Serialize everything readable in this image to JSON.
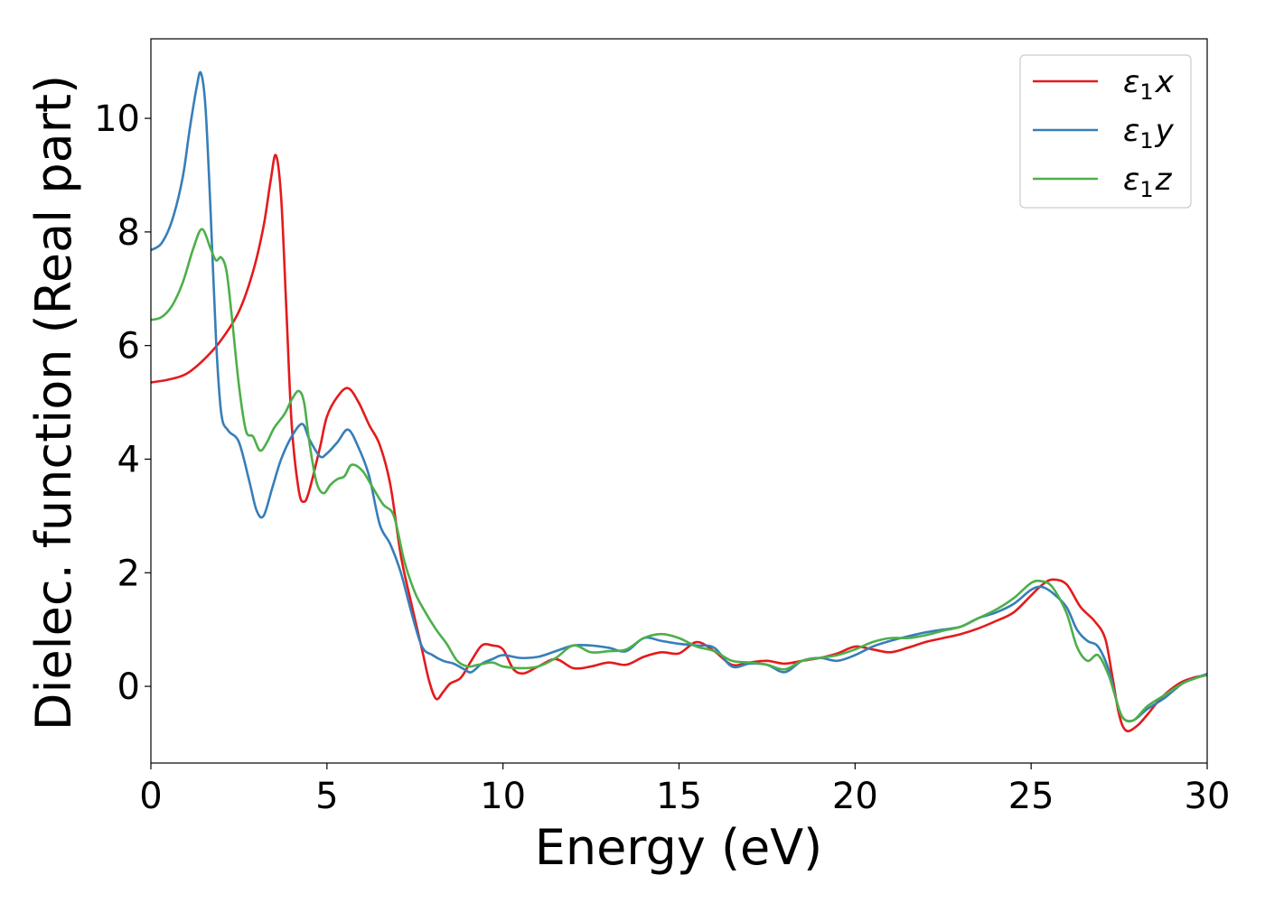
{
  "chart_data": {
    "type": "line",
    "title": "",
    "xlabel": "Energy (eV)",
    "ylabel": "Dielec. function (Real part)",
    "xlim": [
      0,
      30
    ],
    "ylim": [
      -1.35,
      11.4
    ],
    "xticks": [
      0,
      5,
      10,
      15,
      20,
      25,
      30
    ],
    "yticks": [
      0,
      2,
      4,
      6,
      8,
      10
    ],
    "grid": false,
    "legend_position": "top-right",
    "series": [
      {
        "name_base": "ε",
        "name_sub": "1",
        "name_suffix": "x",
        "color": "#e41a1c",
        "x": [
          0,
          0.5,
          1.0,
          1.5,
          2.0,
          2.5,
          2.9,
          3.2,
          3.4,
          3.55,
          3.7,
          3.85,
          4.0,
          4.2,
          4.35,
          4.5,
          4.8,
          5.0,
          5.3,
          5.6,
          5.9,
          6.2,
          6.5,
          6.8,
          7.1,
          7.4,
          7.7,
          7.9,
          8.1,
          8.3,
          8.5,
          8.8,
          9.1,
          9.4,
          9.7,
          10.0,
          10.3,
          10.6,
          11.0,
          11.5,
          12.0,
          12.5,
          13.0,
          13.5,
          14.0,
          14.5,
          15.0,
          15.5,
          16.0,
          16.5,
          17.0,
          17.5,
          18.0,
          18.5,
          19.0,
          19.5,
          20.0,
          20.5,
          21.0,
          21.5,
          22.0,
          22.5,
          23.0,
          23.5,
          24.0,
          24.5,
          25.0,
          25.3,
          25.6,
          26.0,
          26.4,
          26.8,
          27.1,
          27.3,
          27.5,
          27.7,
          28.0,
          28.3,
          28.7,
          29.2,
          29.6,
          30.0
        ],
        "y": [
          5.35,
          5.4,
          5.5,
          5.75,
          6.1,
          6.6,
          7.3,
          8.1,
          8.9,
          9.35,
          8.6,
          6.6,
          4.6,
          3.45,
          3.25,
          3.45,
          4.2,
          4.75,
          5.1,
          5.25,
          5.0,
          4.6,
          4.25,
          3.55,
          2.3,
          1.45,
          0.65,
          0.1,
          -0.22,
          -0.1,
          0.05,
          0.15,
          0.45,
          0.72,
          0.72,
          0.65,
          0.3,
          0.23,
          0.35,
          0.48,
          0.32,
          0.35,
          0.42,
          0.38,
          0.52,
          0.6,
          0.58,
          0.78,
          0.62,
          0.38,
          0.42,
          0.45,
          0.4,
          0.45,
          0.5,
          0.58,
          0.7,
          0.65,
          0.6,
          0.68,
          0.78,
          0.85,
          0.92,
          1.02,
          1.15,
          1.3,
          1.6,
          1.78,
          1.88,
          1.8,
          1.4,
          1.15,
          0.85,
          0.2,
          -0.5,
          -0.78,
          -0.7,
          -0.5,
          -0.2,
          0.05,
          0.15,
          0.2
        ]
      },
      {
        "name_base": "ε",
        "name_sub": "1",
        "name_suffix": "y",
        "color": "#377eb8",
        "x": [
          0,
          0.3,
          0.6,
          0.9,
          1.1,
          1.3,
          1.42,
          1.55,
          1.7,
          1.85,
          2.0,
          2.2,
          2.5,
          2.8,
          3.0,
          3.2,
          3.45,
          3.7,
          4.0,
          4.3,
          4.5,
          4.8,
          5.0,
          5.3,
          5.6,
          5.9,
          6.2,
          6.5,
          6.8,
          7.1,
          7.4,
          7.7,
          8.0,
          8.3,
          8.6,
          8.9,
          9.1,
          9.4,
          9.7,
          10.0,
          10.5,
          11.0,
          11.5,
          12.0,
          12.5,
          13.0,
          13.5,
          14.0,
          14.5,
          15.0,
          15.5,
          16.0,
          16.5,
          17.0,
          17.5,
          18.0,
          18.5,
          19.0,
          19.5,
          20.0,
          20.5,
          21.0,
          21.5,
          22.0,
          22.5,
          23.0,
          23.5,
          24.0,
          24.5,
          25.0,
          25.3,
          25.6,
          26.0,
          26.3,
          26.6,
          26.9,
          27.2,
          27.4,
          27.6,
          27.9,
          28.3,
          28.8,
          29.3,
          29.7,
          30.0
        ],
        "y": [
          7.68,
          7.8,
          8.2,
          8.95,
          9.8,
          10.55,
          10.8,
          10.2,
          8.3,
          6.1,
          4.8,
          4.5,
          4.3,
          3.6,
          3.1,
          3.0,
          3.5,
          4.0,
          4.4,
          4.62,
          4.35,
          4.05,
          4.1,
          4.3,
          4.52,
          4.2,
          3.7,
          2.85,
          2.5,
          2.0,
          1.3,
          0.7,
          0.55,
          0.45,
          0.4,
          0.3,
          0.25,
          0.4,
          0.48,
          0.55,
          0.5,
          0.52,
          0.62,
          0.72,
          0.72,
          0.68,
          0.62,
          0.85,
          0.8,
          0.75,
          0.72,
          0.68,
          0.35,
          0.4,
          0.38,
          0.25,
          0.45,
          0.5,
          0.45,
          0.55,
          0.7,
          0.8,
          0.88,
          0.95,
          1.0,
          1.05,
          1.2,
          1.3,
          1.45,
          1.7,
          1.75,
          1.65,
          1.4,
          1.0,
          0.8,
          0.7,
          0.3,
          -0.2,
          -0.55,
          -0.6,
          -0.4,
          -0.2,
          0.05,
          0.15,
          0.22
        ]
      },
      {
        "name_base": "ε",
        "name_sub": "1",
        "name_suffix": "z",
        "color": "#4daf4a",
        "x": [
          0,
          0.3,
          0.6,
          0.9,
          1.2,
          1.45,
          1.7,
          1.85,
          2.0,
          2.15,
          2.3,
          2.5,
          2.7,
          2.9,
          3.1,
          3.3,
          3.5,
          3.8,
          4.0,
          4.2,
          4.35,
          4.5,
          4.7,
          4.9,
          5.1,
          5.3,
          5.5,
          5.7,
          6.0,
          6.3,
          6.6,
          6.9,
          7.2,
          7.5,
          7.8,
          8.1,
          8.4,
          8.7,
          9.0,
          9.3,
          9.7,
          10.0,
          10.5,
          11.0,
          11.5,
          12.0,
          12.5,
          13.0,
          13.5,
          14.0,
          14.5,
          15.0,
          15.5,
          16.0,
          16.5,
          17.0,
          17.5,
          18.0,
          18.5,
          19.0,
          19.5,
          20.0,
          20.5,
          21.0,
          21.5,
          22.0,
          22.5,
          23.0,
          23.5,
          24.0,
          24.5,
          25.0,
          25.3,
          25.6,
          26.0,
          26.3,
          26.6,
          26.9,
          27.2,
          27.4,
          27.6,
          27.9,
          28.3,
          28.8,
          29.3,
          29.7,
          30.0
        ],
        "y": [
          6.45,
          6.5,
          6.7,
          7.1,
          7.7,
          8.05,
          7.7,
          7.5,
          7.55,
          7.3,
          6.5,
          5.3,
          4.5,
          4.4,
          4.15,
          4.3,
          4.55,
          4.8,
          5.05,
          5.2,
          5.0,
          4.3,
          3.6,
          3.4,
          3.55,
          3.65,
          3.7,
          3.9,
          3.8,
          3.5,
          3.2,
          3.0,
          2.2,
          1.65,
          1.3,
          1.0,
          0.75,
          0.45,
          0.35,
          0.38,
          0.42,
          0.35,
          0.32,
          0.35,
          0.5,
          0.72,
          0.6,
          0.62,
          0.65,
          0.85,
          0.92,
          0.85,
          0.7,
          0.62,
          0.45,
          0.42,
          0.38,
          0.3,
          0.45,
          0.5,
          0.55,
          0.65,
          0.78,
          0.85,
          0.85,
          0.9,
          0.98,
          1.05,
          1.2,
          1.35,
          1.55,
          1.82,
          1.85,
          1.75,
          1.3,
          0.7,
          0.45,
          0.55,
          0.2,
          -0.2,
          -0.55,
          -0.6,
          -0.35,
          -0.15,
          0.05,
          0.15,
          0.2
        ]
      }
    ]
  }
}
